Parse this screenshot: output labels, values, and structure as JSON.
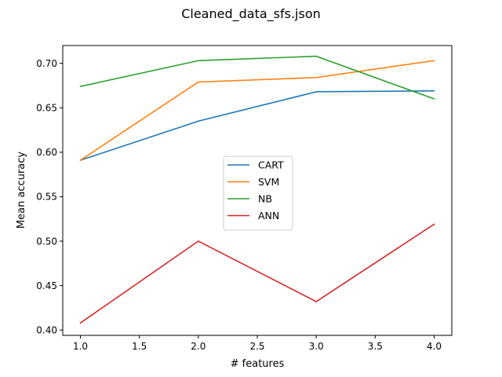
{
  "chart_data": {
    "type": "line",
    "title": "Cleaned_data_sfs.json",
    "xlabel": "# features",
    "ylabel": "Mean accuracy",
    "x": [
      1.0,
      2.0,
      3.0,
      4.0
    ],
    "xlim": [
      0.85,
      4.15
    ],
    "ylim": [
      0.394,
      0.72
    ],
    "xticks": [
      1.0,
      1.5,
      2.0,
      2.5,
      3.0,
      3.5,
      4.0
    ],
    "xtick_labels": [
      "1.0",
      "1.5",
      "2.0",
      "2.5",
      "3.0",
      "3.5",
      "4.0"
    ],
    "yticks": [
      0.4,
      0.45,
      0.5,
      0.55,
      0.6,
      0.65,
      0.7
    ],
    "ytick_labels": [
      "0.40",
      "0.45",
      "0.50",
      "0.55",
      "0.60",
      "0.65",
      "0.70"
    ],
    "grid": false,
    "legend_position": "center",
    "series": [
      {
        "name": "CART",
        "color": "#1f77b4",
        "values": [
          0.591,
          0.635,
          0.668,
          0.669
        ]
      },
      {
        "name": "SVM",
        "color": "#ff7f0e",
        "values": [
          0.591,
          0.679,
          0.684,
          0.703
        ]
      },
      {
        "name": "NB",
        "color": "#2ca02c",
        "values": [
          0.674,
          0.703,
          0.708,
          0.66
        ]
      },
      {
        "name": "ANN",
        "color": "#d62728",
        "values": [
          0.408,
          0.5,
          0.432,
          0.519
        ]
      }
    ]
  }
}
